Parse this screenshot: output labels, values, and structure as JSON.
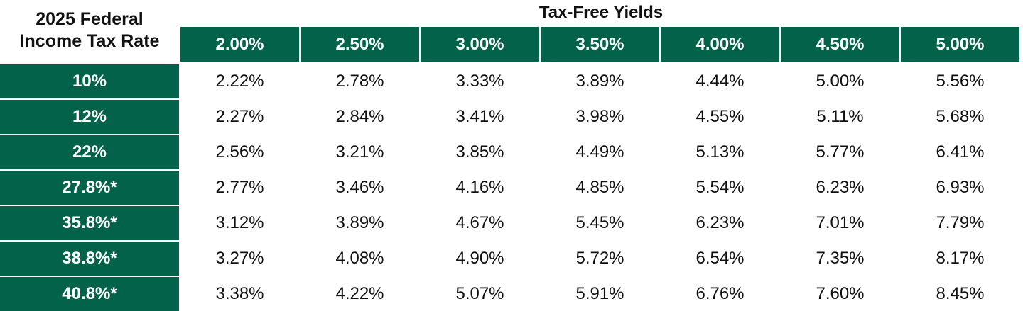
{
  "chart_data": {
    "type": "table",
    "corner_label_line1": "2025 Federal",
    "corner_label_line2": "Income Tax Rate",
    "column_group_title": "Tax-Free Yields",
    "columns": [
      "2.00%",
      "2.50%",
      "3.00%",
      "3.50%",
      "4.00%",
      "4.50%",
      "5.00%"
    ],
    "rows": [
      {
        "label": "10%",
        "values": [
          "2.22%",
          "2.78%",
          "3.33%",
          "3.89%",
          "4.44%",
          "5.00%",
          "5.56%"
        ]
      },
      {
        "label": "12%",
        "values": [
          "2.27%",
          "2.84%",
          "3.41%",
          "3.98%",
          "4.55%",
          "5.11%",
          "5.68%"
        ]
      },
      {
        "label": "22%",
        "values": [
          "2.56%",
          "3.21%",
          "3.85%",
          "4.49%",
          "5.13%",
          "5.77%",
          "6.41%"
        ]
      },
      {
        "label": "27.8%*",
        "values": [
          "2.77%",
          "3.46%",
          "4.16%",
          "4.85%",
          "5.54%",
          "6.23%",
          "6.93%"
        ]
      },
      {
        "label": "35.8%*",
        "values": [
          "3.12%",
          "3.89%",
          "4.67%",
          "5.45%",
          "6.23%",
          "7.01%",
          "7.79%"
        ]
      },
      {
        "label": "38.8%*",
        "values": [
          "3.27%",
          "4.08%",
          "4.90%",
          "5.72%",
          "6.54%",
          "7.35%",
          "8.17%"
        ]
      },
      {
        "label": "40.8%*",
        "values": [
          "3.38%",
          "4.22%",
          "5.07%",
          "5.91%",
          "6.76%",
          "7.60%",
          "8.45%"
        ]
      }
    ]
  },
  "colors": {
    "header_fill": "#03634a",
    "header_text": "#ffffff",
    "body_text": "#111111"
  }
}
